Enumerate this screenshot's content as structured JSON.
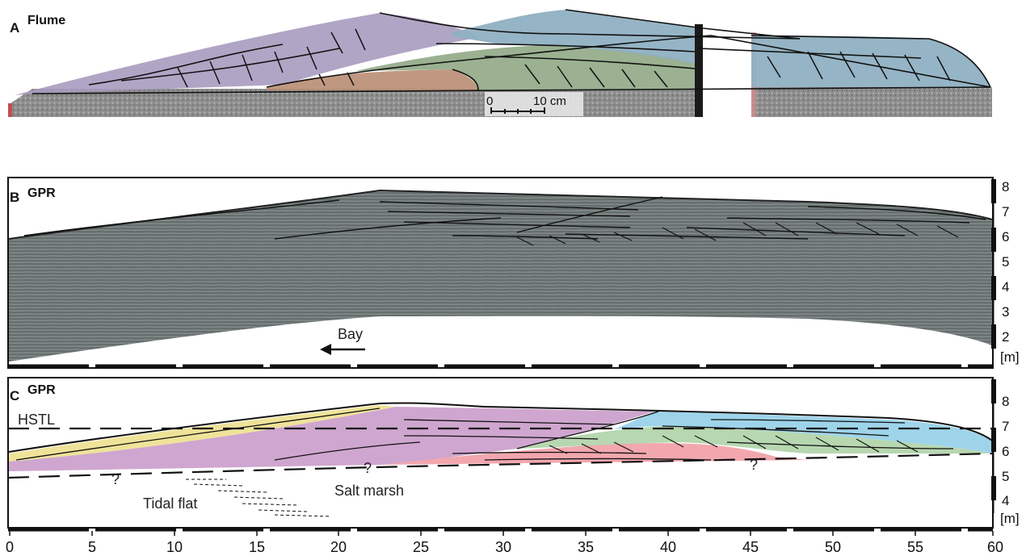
{
  "panel_a": {
    "letter": "A",
    "name": "Flume",
    "scale_zero": "0",
    "scale_label": "10 cm"
  },
  "panel_b": {
    "letter": "B",
    "name": "GPR",
    "bay_label": "Bay",
    "depth_ticks": [
      "8",
      "7",
      "6",
      "5",
      "4",
      "3",
      "2"
    ],
    "depth_unit": "[m]"
  },
  "panel_c": {
    "letter": "C",
    "name": "GPR",
    "hstl_label": "HSTL",
    "tidal_flat_label": "Tidal flat",
    "salt_marsh_label": "Salt marsh",
    "question_mark": "?",
    "depth_ticks": [
      "8",
      "7",
      "6",
      "5",
      "4"
    ],
    "depth_unit": "[m]"
  },
  "x_axis": {
    "ticks": [
      "0",
      "5",
      "10",
      "15",
      "20",
      "25",
      "30",
      "35",
      "40",
      "45",
      "50",
      "55",
      "60"
    ]
  },
  "colors": {
    "purple": "#cfa6cf",
    "pink": "#f2a7ae",
    "blue": "#9ed4ea",
    "green": "#b7d7b0",
    "yellow": "#efe39a",
    "gpr_gray": "#727b7a"
  }
}
